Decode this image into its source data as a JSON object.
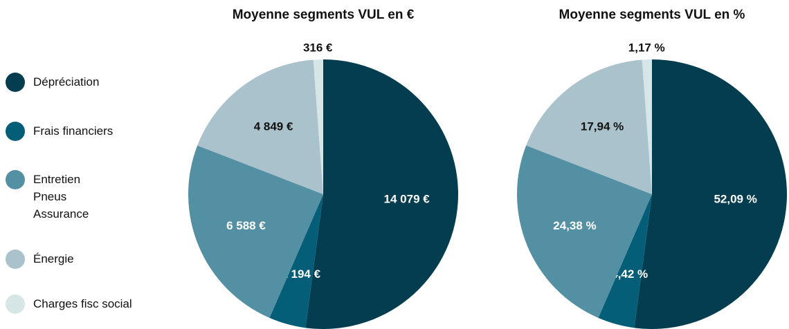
{
  "chart_data": [
    {
      "type": "pie",
      "title": "Moyenne segments VUL en €",
      "categories": [
        "Dépréciation",
        "Frais financiers",
        "Entretien\nPneus\nAssurance",
        "Énergie",
        "Charges fisc social"
      ],
      "values": [
        14079,
        1194,
        6588,
        4849,
        316
      ],
      "value_labels": [
        "14 079 €",
        "1 194 €",
        "6 588 €",
        "4 849 €",
        "316 €"
      ],
      "colors": [
        "#033d4f",
        "#045e77",
        "#5490a3",
        "#a9c2cc",
        "#d6e6e6"
      ]
    },
    {
      "type": "pie",
      "title": "Moyenne segments VUL en %",
      "values": [
        52.09,
        4.42,
        24.38,
        17.94,
        1.17
      ],
      "value_labels": [
        "52,09 %",
        "4,42 %",
        "24,38 %",
        "17,94 %",
        "1,17 %"
      ],
      "colors": [
        "#033d4f",
        "#045e77",
        "#5490a3",
        "#a9c2cc",
        "#d6e6e6"
      ]
    }
  ]
}
